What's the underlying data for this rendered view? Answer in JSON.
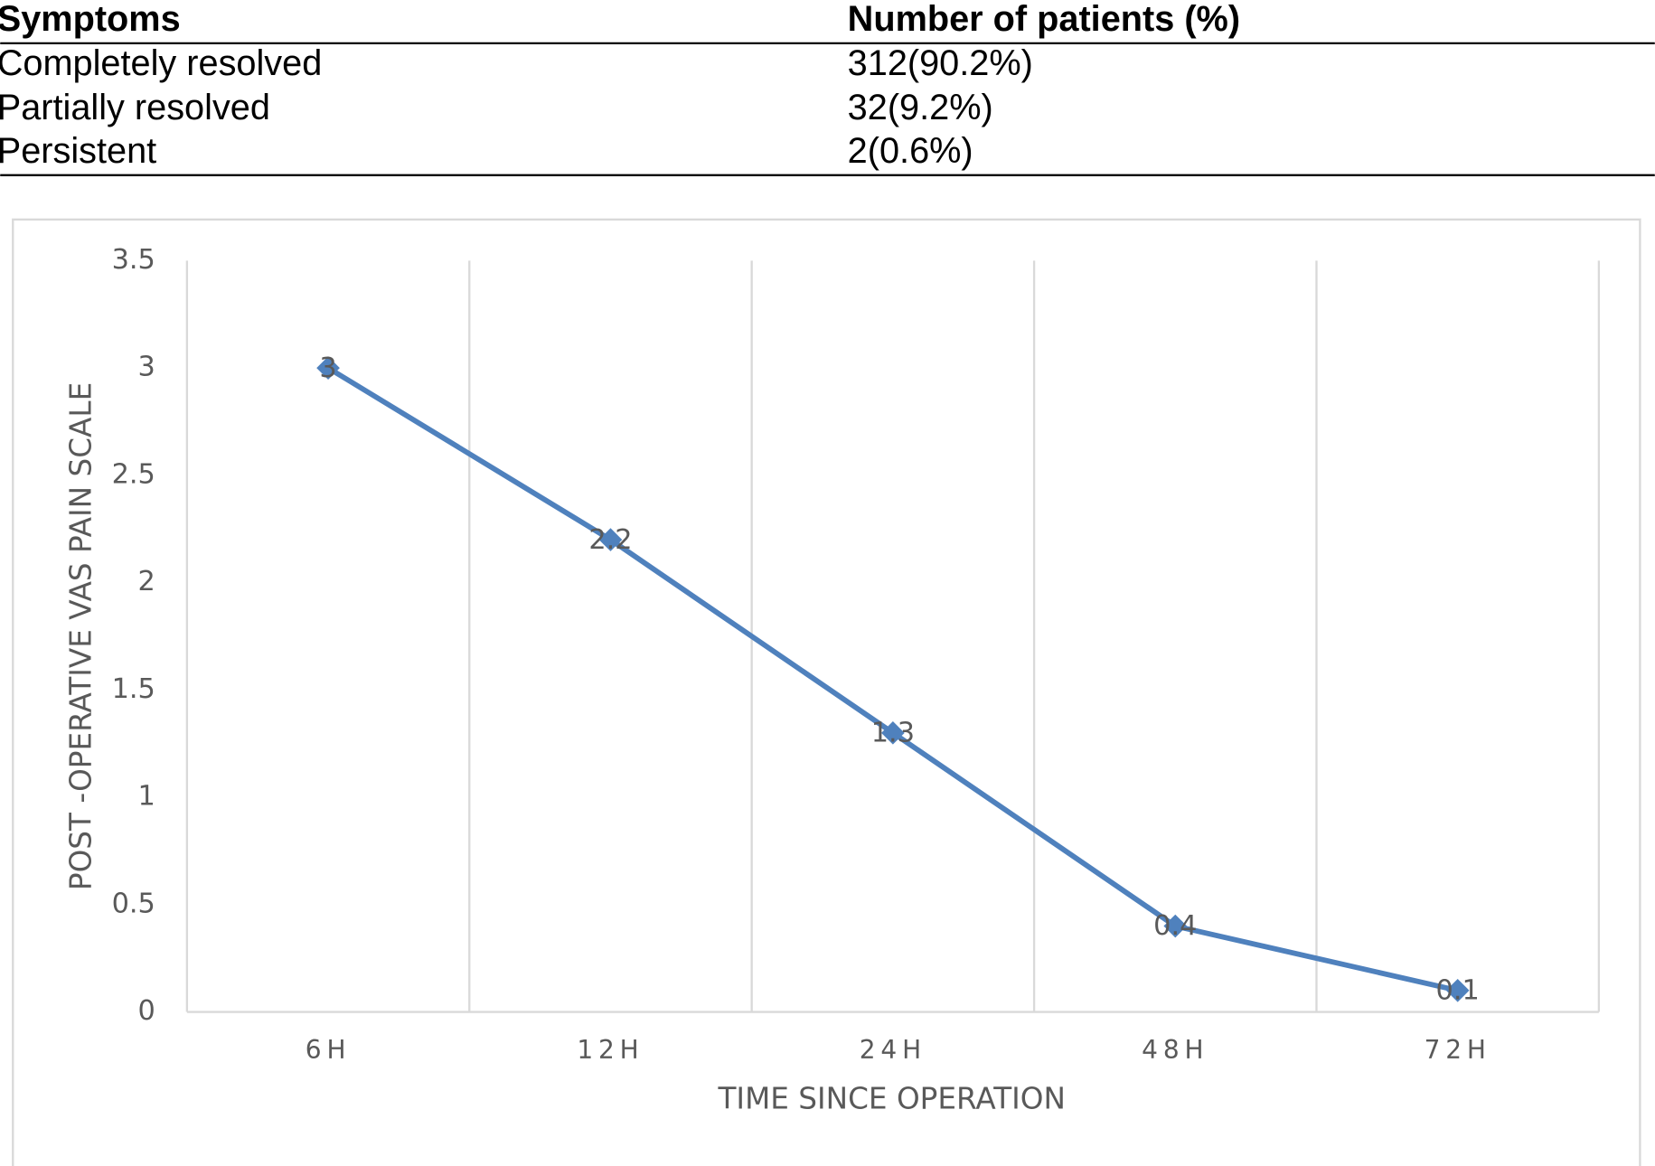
{
  "table": {
    "header": [
      "Symptoms",
      "Number of patients (%)"
    ],
    "rows": [
      [
        "Completely resolved",
        "312(90.2%)"
      ],
      [
        "Partially resolved",
        "32(9.2%)"
      ],
      [
        "Persistent",
        "2(0.6%)"
      ]
    ]
  },
  "chart_data": {
    "type": "line",
    "x_label": "TIME SINCE OPERATION",
    "y_label": "POST -OPERATIVE VAS PAIN SCALE",
    "categories": [
      "6H",
      "12H",
      "24H",
      "48H",
      "72H"
    ],
    "values": [
      3,
      2.2,
      1.3,
      0.4,
      0.1
    ],
    "color": "#4f81bd",
    "ylim": [
      0,
      3.5
    ],
    "yticks": [
      0,
      0.5,
      1,
      1.5,
      2,
      2.5,
      3,
      3.5
    ],
    "grid": true,
    "data_labels": true
  }
}
